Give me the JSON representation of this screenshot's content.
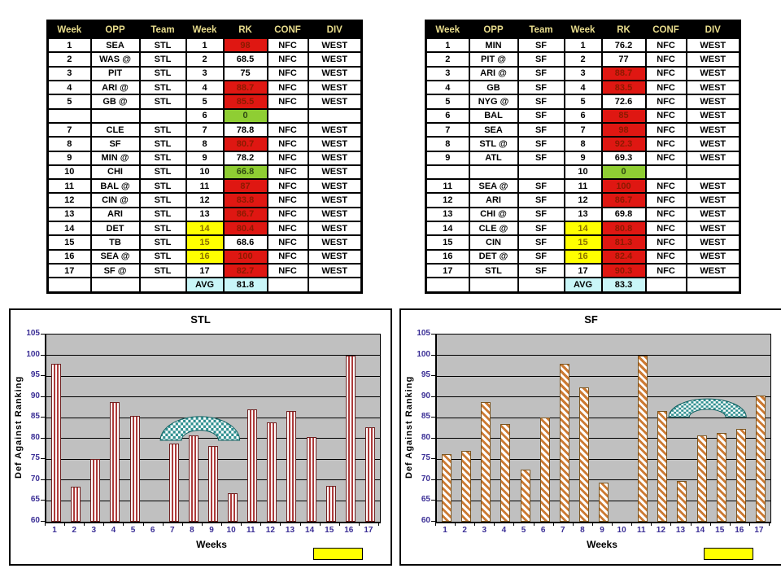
{
  "colors": {
    "header_bg": "#000000",
    "header_text": "#E8DC8C",
    "red_cell_bg": "#DF1712",
    "red_cell_text": "#8B1A00",
    "green_cell_bg": "#8FCE33",
    "yellow_cell_bg": "#FFFF00",
    "avg_cell_bg": "#C9F6F8",
    "plot_bg": "#C0C0C0",
    "tick_label": "#3B2F96",
    "bar_red_stripe": "#AD3A3A",
    "bar_orange_stripe": "#CC7A33",
    "arc_teal": "#2E8F8F",
    "legend_yellow": "#FFFF00"
  },
  "tables": [
    {
      "name": "STL schedule",
      "headers": [
        "Week",
        "OPP",
        "Team",
        "Week",
        "RK",
        "CONF",
        "DIV"
      ],
      "rows": [
        [
          "1",
          "SEA",
          "STL",
          "1",
          {
            "v": "98",
            "s": "red"
          },
          "NFC",
          "WEST"
        ],
        [
          "2",
          "WAS @",
          "STL",
          "2",
          "68.5",
          "NFC",
          "WEST"
        ],
        [
          "3",
          "PIT",
          "STL",
          "3",
          "75",
          "NFC",
          "WEST"
        ],
        [
          "4",
          "ARI @",
          "STL",
          "4",
          {
            "v": "88.7",
            "s": "red"
          },
          "NFC",
          "WEST"
        ],
        [
          "5",
          "GB @",
          "STL",
          "5",
          {
            "v": "85.5",
            "s": "red"
          },
          "NFC",
          "WEST"
        ],
        [
          "",
          "",
          "",
          "6",
          {
            "v": "0",
            "s": "green"
          },
          "",
          ""
        ],
        [
          "7",
          "CLE",
          "STL",
          "7",
          "78.8",
          "NFC",
          "WEST"
        ],
        [
          "8",
          "SF",
          "STL",
          "8",
          {
            "v": "80.7",
            "s": "red"
          },
          "NFC",
          "WEST"
        ],
        [
          "9",
          "MIN @",
          "STL",
          "9",
          "78.2",
          "NFC",
          "WEST"
        ],
        [
          "10",
          "CHI",
          "STL",
          "10",
          {
            "v": "66.8",
            "s": "green"
          },
          "NFC",
          "WEST"
        ],
        [
          "11",
          "BAL @",
          "STL",
          "11",
          {
            "v": "87",
            "s": "red"
          },
          "NFC",
          "WEST"
        ],
        [
          "12",
          "CIN @",
          "STL",
          "12",
          {
            "v": "83.8",
            "s": "red"
          },
          "NFC",
          "WEST"
        ],
        [
          "13",
          "ARI",
          "STL",
          "13",
          {
            "v": "86.7",
            "s": "red"
          },
          "NFC",
          "WEST"
        ],
        [
          "14",
          "DET",
          "STL",
          {
            "v": "14",
            "s": "yellow"
          },
          {
            "v": "80.4",
            "s": "red"
          },
          "NFC",
          "WEST"
        ],
        [
          "15",
          "TB",
          "STL",
          {
            "v": "15",
            "s": "yellow"
          },
          "68.6",
          "NFC",
          "WEST"
        ],
        [
          "16",
          "SEA @",
          "STL",
          {
            "v": "16",
            "s": "yellow"
          },
          {
            "v": "100",
            "s": "red"
          },
          "NFC",
          "WEST"
        ],
        [
          "17",
          "SF @",
          "STL",
          "17",
          {
            "v": "82.7",
            "s": "red"
          },
          "NFC",
          "WEST"
        ],
        [
          "",
          "",
          "",
          {
            "v": "AVG",
            "s": "avg"
          },
          {
            "v": "81.8",
            "s": "avg"
          },
          "",
          ""
        ]
      ]
    },
    {
      "name": "SF schedule",
      "headers": [
        "Week",
        "OPP",
        "Team",
        "Week",
        "RK",
        "CONF",
        "DIV"
      ],
      "rows": [
        [
          "1",
          "MIN",
          "SF",
          "1",
          "76.2",
          "NFC",
          "WEST"
        ],
        [
          "2",
          "PIT @",
          "SF",
          "2",
          "77",
          "NFC",
          "WEST"
        ],
        [
          "3",
          "ARI @",
          "SF",
          "3",
          {
            "v": "88.7",
            "s": "red"
          },
          "NFC",
          "WEST"
        ],
        [
          "4",
          "GB",
          "SF",
          "4",
          {
            "v": "83.5",
            "s": "red"
          },
          "NFC",
          "WEST"
        ],
        [
          "5",
          "NYG @",
          "SF",
          "5",
          "72.6",
          "NFC",
          "WEST"
        ],
        [
          "6",
          "BAL",
          "SF",
          "6",
          {
            "v": "85",
            "s": "red"
          },
          "NFC",
          "WEST"
        ],
        [
          "7",
          "SEA",
          "SF",
          "7",
          {
            "v": "98",
            "s": "red"
          },
          "NFC",
          "WEST"
        ],
        [
          "8",
          "STL @",
          "SF",
          "8",
          {
            "v": "92.3",
            "s": "red"
          },
          "NFC",
          "WEST"
        ],
        [
          "9",
          "ATL",
          "SF",
          "9",
          "69.3",
          "NFC",
          "WEST"
        ],
        [
          "",
          "",
          "",
          "10",
          {
            "v": "0",
            "s": "green"
          },
          "",
          ""
        ],
        [
          "11",
          "SEA @",
          "SF",
          "11",
          {
            "v": "100",
            "s": "red"
          },
          "NFC",
          "WEST"
        ],
        [
          "12",
          "ARI",
          "SF",
          "12",
          {
            "v": "86.7",
            "s": "red"
          },
          "NFC",
          "WEST"
        ],
        [
          "13",
          "CHI @",
          "SF",
          "13",
          "69.8",
          "NFC",
          "WEST"
        ],
        [
          "14",
          "CLE @",
          "SF",
          {
            "v": "14",
            "s": "yellow"
          },
          {
            "v": "80.8",
            "s": "red"
          },
          "NFC",
          "WEST"
        ],
        [
          "15",
          "CIN",
          "SF",
          {
            "v": "15",
            "s": "yellow"
          },
          {
            "v": "81.3",
            "s": "red"
          },
          "NFC",
          "WEST"
        ],
        [
          "16",
          "DET @",
          "SF",
          {
            "v": "16",
            "s": "yellow"
          },
          {
            "v": "82.4",
            "s": "red"
          },
          "NFC",
          "WEST"
        ],
        [
          "17",
          "STL",
          "SF",
          "17",
          {
            "v": "90.3",
            "s": "red"
          },
          "NFC",
          "WEST"
        ],
        [
          "",
          "",
          "",
          {
            "v": "AVG",
            "s": "avg"
          },
          {
            "v": "83.3",
            "s": "avg"
          },
          "",
          ""
        ]
      ]
    }
  ],
  "chart_data": [
    {
      "type": "bar",
      "title": "STL",
      "ylabel": "Def Against Ranking",
      "xlabel": "Weeks",
      "categories": [
        "1",
        "2",
        "3",
        "4",
        "5",
        "6",
        "7",
        "8",
        "9",
        "10",
        "11",
        "12",
        "13",
        "14",
        "15",
        "16",
        "17"
      ],
      "values": [
        98,
        68.5,
        75,
        88.7,
        85.5,
        null,
        78.8,
        80.7,
        78.2,
        66.8,
        87,
        83.8,
        86.7,
        80.4,
        68.6,
        100,
        82.7
      ],
      "ylim": [
        60,
        105
      ],
      "ytick_step": 5,
      "grid": "horizontal",
      "bar_style": "red-vertical-stripes",
      "annotation_arc": {
        "from_week": 5.7,
        "to_week": 10.0,
        "top_value": 85.8,
        "bottom_value": 79.2
      },
      "legend": "yellow-swatch-bottom-right"
    },
    {
      "type": "bar",
      "title": "SF",
      "ylabel": "Def Against Ranking",
      "xlabel": "Weeks",
      "categories": [
        "1",
        "2",
        "3",
        "4",
        "5",
        "6",
        "7",
        "8",
        "9",
        "10",
        "11",
        "12",
        "13",
        "14",
        "15",
        "16",
        "17"
      ],
      "values": [
        76.2,
        77,
        88.7,
        83.5,
        72.6,
        85,
        98,
        92.3,
        69.3,
        null,
        100,
        86.7,
        69.8,
        80.8,
        81.3,
        82.4,
        90.3
      ],
      "ylim": [
        60,
        105
      ],
      "ytick_step": 5,
      "grid": "horizontal",
      "bar_style": "orange-diagonal-stripes",
      "annotation_arc": {
        "from_week": 11.7,
        "to_week": 15.9,
        "top_value": 90.0,
        "bottom_value": 85.0
      },
      "legend": "yellow-swatch-bottom-right"
    }
  ]
}
